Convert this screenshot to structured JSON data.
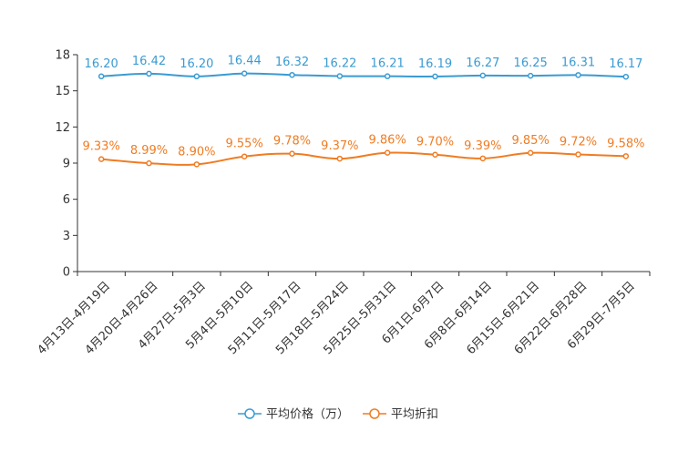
{
  "chart_data": {
    "type": "line",
    "title": "",
    "xlabel": "",
    "ylabel": "",
    "ylim": [
      0,
      18
    ],
    "yticks": [
      "0",
      "3",
      "6",
      "9",
      "12",
      "15",
      "18"
    ],
    "grid": false,
    "legend_position": "bottom-center",
    "categories": [
      "4月13日-4月19日",
      "4月20日-4月26日",
      "4月27日-5月3日",
      "5月4日-5月10日",
      "5月11日-5月17日",
      "5月18日-5月24日",
      "5月25日-5月31日",
      "6月1日-6月7日",
      "6月8日-6月14日",
      "6月15日-6月21日",
      "6月22日-6月28日",
      "6月29日-7月5日"
    ],
    "series": [
      {
        "name": "平均价格（万）",
        "color": "#3a9bd2",
        "values": [
          16.2,
          16.42,
          16.2,
          16.44,
          16.32,
          16.22,
          16.21,
          16.19,
          16.27,
          16.25,
          16.31,
          16.17
        ],
        "labels": [
          "16.20",
          "16.42",
          "16.20",
          "16.44",
          "16.32",
          "16.22",
          "16.21",
          "16.19",
          "16.27",
          "16.25",
          "16.31",
          "16.17"
        ]
      },
      {
        "name": "平均折扣",
        "color": "#f07c22",
        "values": [
          9.33,
          8.99,
          8.9,
          9.55,
          9.78,
          9.37,
          9.86,
          9.7,
          9.39,
          9.85,
          9.72,
          9.58
        ],
        "labels": [
          "9.33%",
          "8.99%",
          "8.90%",
          "9.55%",
          "9.78%",
          "9.37%",
          "9.86%",
          "9.70%",
          "9.39%",
          "9.85%",
          "9.72%",
          "9.58%"
        ]
      }
    ]
  }
}
